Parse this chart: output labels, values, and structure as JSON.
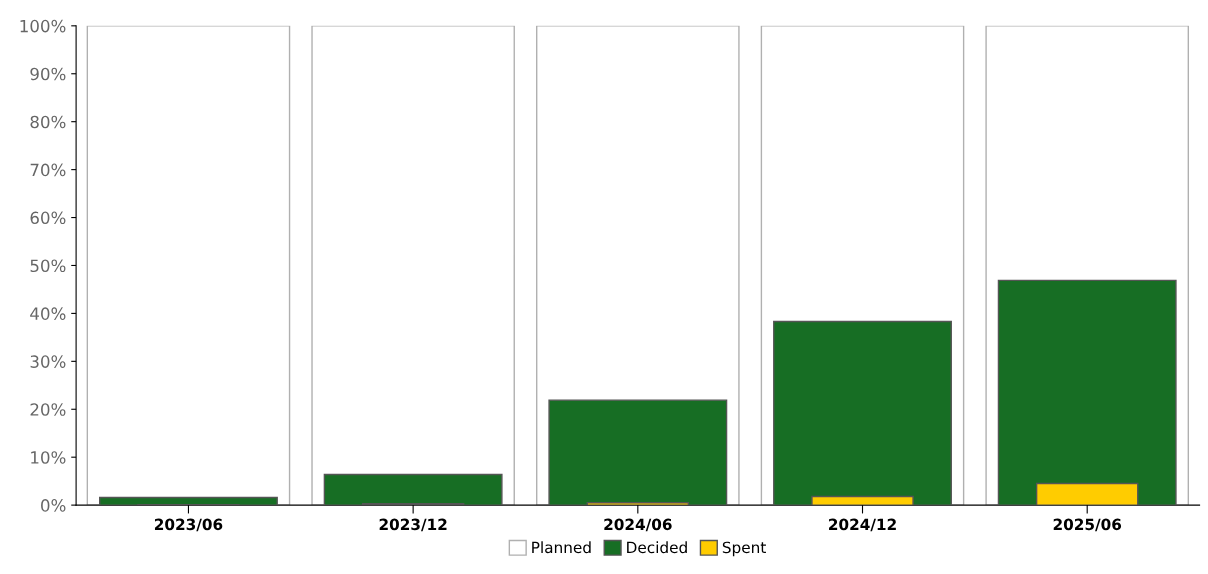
{
  "chart_data": {
    "type": "bar",
    "categories": [
      "2023/06",
      "2023/12",
      "2024/06",
      "2024/12",
      "2025/06"
    ],
    "series": [
      {
        "name": "Planned",
        "color": "#ffffff",
        "values": [
          100,
          100,
          100,
          100,
          100
        ]
      },
      {
        "name": "Decided",
        "color": "#176e24",
        "values": [
          1.6,
          6.4,
          21.9,
          38.3,
          46.9
        ]
      },
      {
        "name": "Spent",
        "color": "#ffcc00",
        "values": [
          0.1,
          0.3,
          0.5,
          1.8,
          4.5
        ]
      }
    ],
    "ylim": [
      0,
      100
    ],
    "yticks": [
      {
        "value": 0,
        "label": "0%"
      },
      {
        "value": 10,
        "label": "10%"
      },
      {
        "value": 20,
        "label": "20%"
      },
      {
        "value": 30,
        "label": "30%"
      },
      {
        "value": 40,
        "label": "40%"
      },
      {
        "value": 50,
        "label": "50%"
      },
      {
        "value": 60,
        "label": "60%"
      },
      {
        "value": 70,
        "label": "70%"
      },
      {
        "value": 80,
        "label": "80%"
      },
      {
        "value": 90,
        "label": "90%"
      },
      {
        "value": 100,
        "label": "100%"
      }
    ],
    "grid": false,
    "legend": "bottom"
  }
}
